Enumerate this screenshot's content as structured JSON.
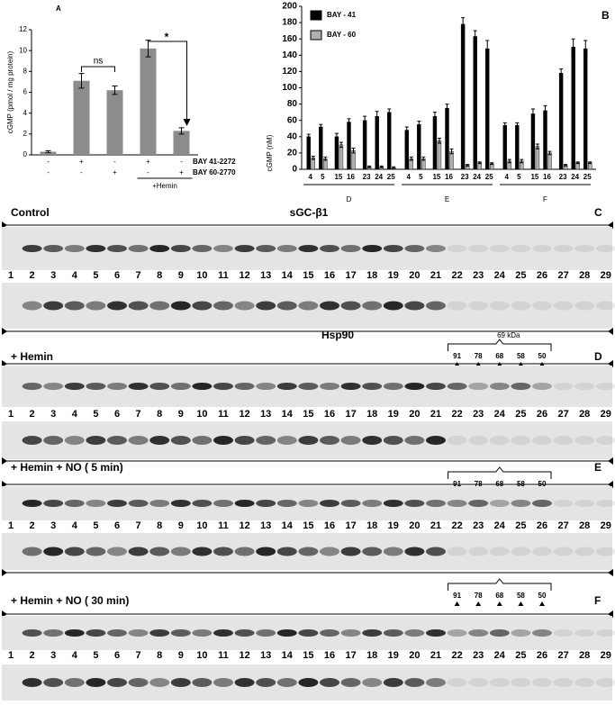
{
  "chart_data": [
    {
      "type": "bar",
      "panel": "A",
      "y_label": "cGMP (pmol / mg protein)",
      "categories": [
        null,
        null,
        null,
        null,
        null
      ],
      "values": [
        0.3,
        7.1,
        6.2,
        10.2,
        2.3
      ],
      "errors": [
        0.1,
        0.7,
        0.4,
        0.8,
        0.3
      ],
      "color": "#8c8c8c",
      "ylim": [
        0,
        12
      ],
      "yticks": [
        0,
        2,
        4,
        6,
        8,
        10,
        12
      ],
      "treatments": [
        {
          "name": "BAY 41-2272",
          "signs": [
            "-",
            "+",
            "-",
            "+",
            "-"
          ]
        },
        {
          "name": "BAY 60-2770",
          "signs": [
            "-",
            "-",
            "+",
            "-",
            "+"
          ]
        }
      ],
      "group_label": "+Hemin",
      "annotations": [
        "ns",
        "*"
      ]
    },
    {
      "type": "bar",
      "panel": "B",
      "y_label": "cGMP (nM)",
      "categories": [
        "4",
        "5",
        "15",
        "16",
        "23",
        "24",
        "25",
        "4",
        "5",
        "15",
        "16",
        "23",
        "24",
        "25",
        "4",
        "5",
        "15",
        "16",
        "23",
        "24",
        "25"
      ],
      "groups": [
        "D",
        "E",
        "F"
      ],
      "series": [
        {
          "name": "BAY - 41",
          "color": "#000000",
          "values": [
            40,
            52,
            40,
            58,
            60,
            65,
            70,
            48,
            55,
            65,
            75,
            178,
            163,
            148,
            54,
            54,
            68,
            72,
            118,
            150,
            148
          ],
          "errors": [
            3,
            3,
            4,
            4,
            5,
            6,
            4,
            4,
            4,
            5,
            5,
            8,
            7,
            10,
            3,
            3,
            6,
            6,
            5,
            10,
            10
          ]
        },
        {
          "name": "BAY - 60",
          "color": "#b0b0b0",
          "values": [
            14,
            13,
            30,
            23,
            3,
            3,
            2,
            13,
            13,
            35,
            22,
            5,
            8,
            7,
            10,
            10,
            28,
            20,
            5,
            8,
            8
          ],
          "errors": [
            2,
            2,
            3,
            3,
            1,
            1,
            1,
            2,
            2,
            3,
            3,
            1,
            1,
            1,
            2,
            2,
            3,
            2,
            1,
            1,
            1
          ]
        }
      ],
      "ylim": [
        0,
        200
      ],
      "yticks": [
        0,
        20,
        40,
        60,
        80,
        100,
        120,
        140,
        160,
        180,
        200
      ],
      "legend": "upper left"
    }
  ],
  "blots": {
    "lanes": [
      "1",
      "2",
      "3",
      "4",
      "5",
      "6",
      "7",
      "8",
      "9",
      "10",
      "11",
      "12",
      "13",
      "14",
      "15",
      "16",
      "17",
      "18",
      "19",
      "20",
      "21",
      "22",
      "23",
      "24",
      "25",
      "26",
      "27",
      "28",
      "29"
    ],
    "panels": [
      {
        "label": "Control",
        "protein": "sGC-β1",
        "panel": "C"
      },
      {
        "label": "+ Hemin",
        "protein": "Hsp90",
        "panel": "D",
        "bracket_label": "69 kDa",
        "markers": [
          "91",
          "78",
          "68",
          "58",
          "50"
        ]
      },
      {
        "label": "+ Hemin + NO ( 5 min)",
        "panel": "E",
        "markers": [
          "91",
          "78",
          "68",
          "58",
          "50"
        ]
      },
      {
        "label": "+ Hemin + NO ( 30 min)",
        "panel": "F",
        "markers": [
          "91",
          "78",
          "68",
          "58",
          "50"
        ]
      }
    ]
  }
}
